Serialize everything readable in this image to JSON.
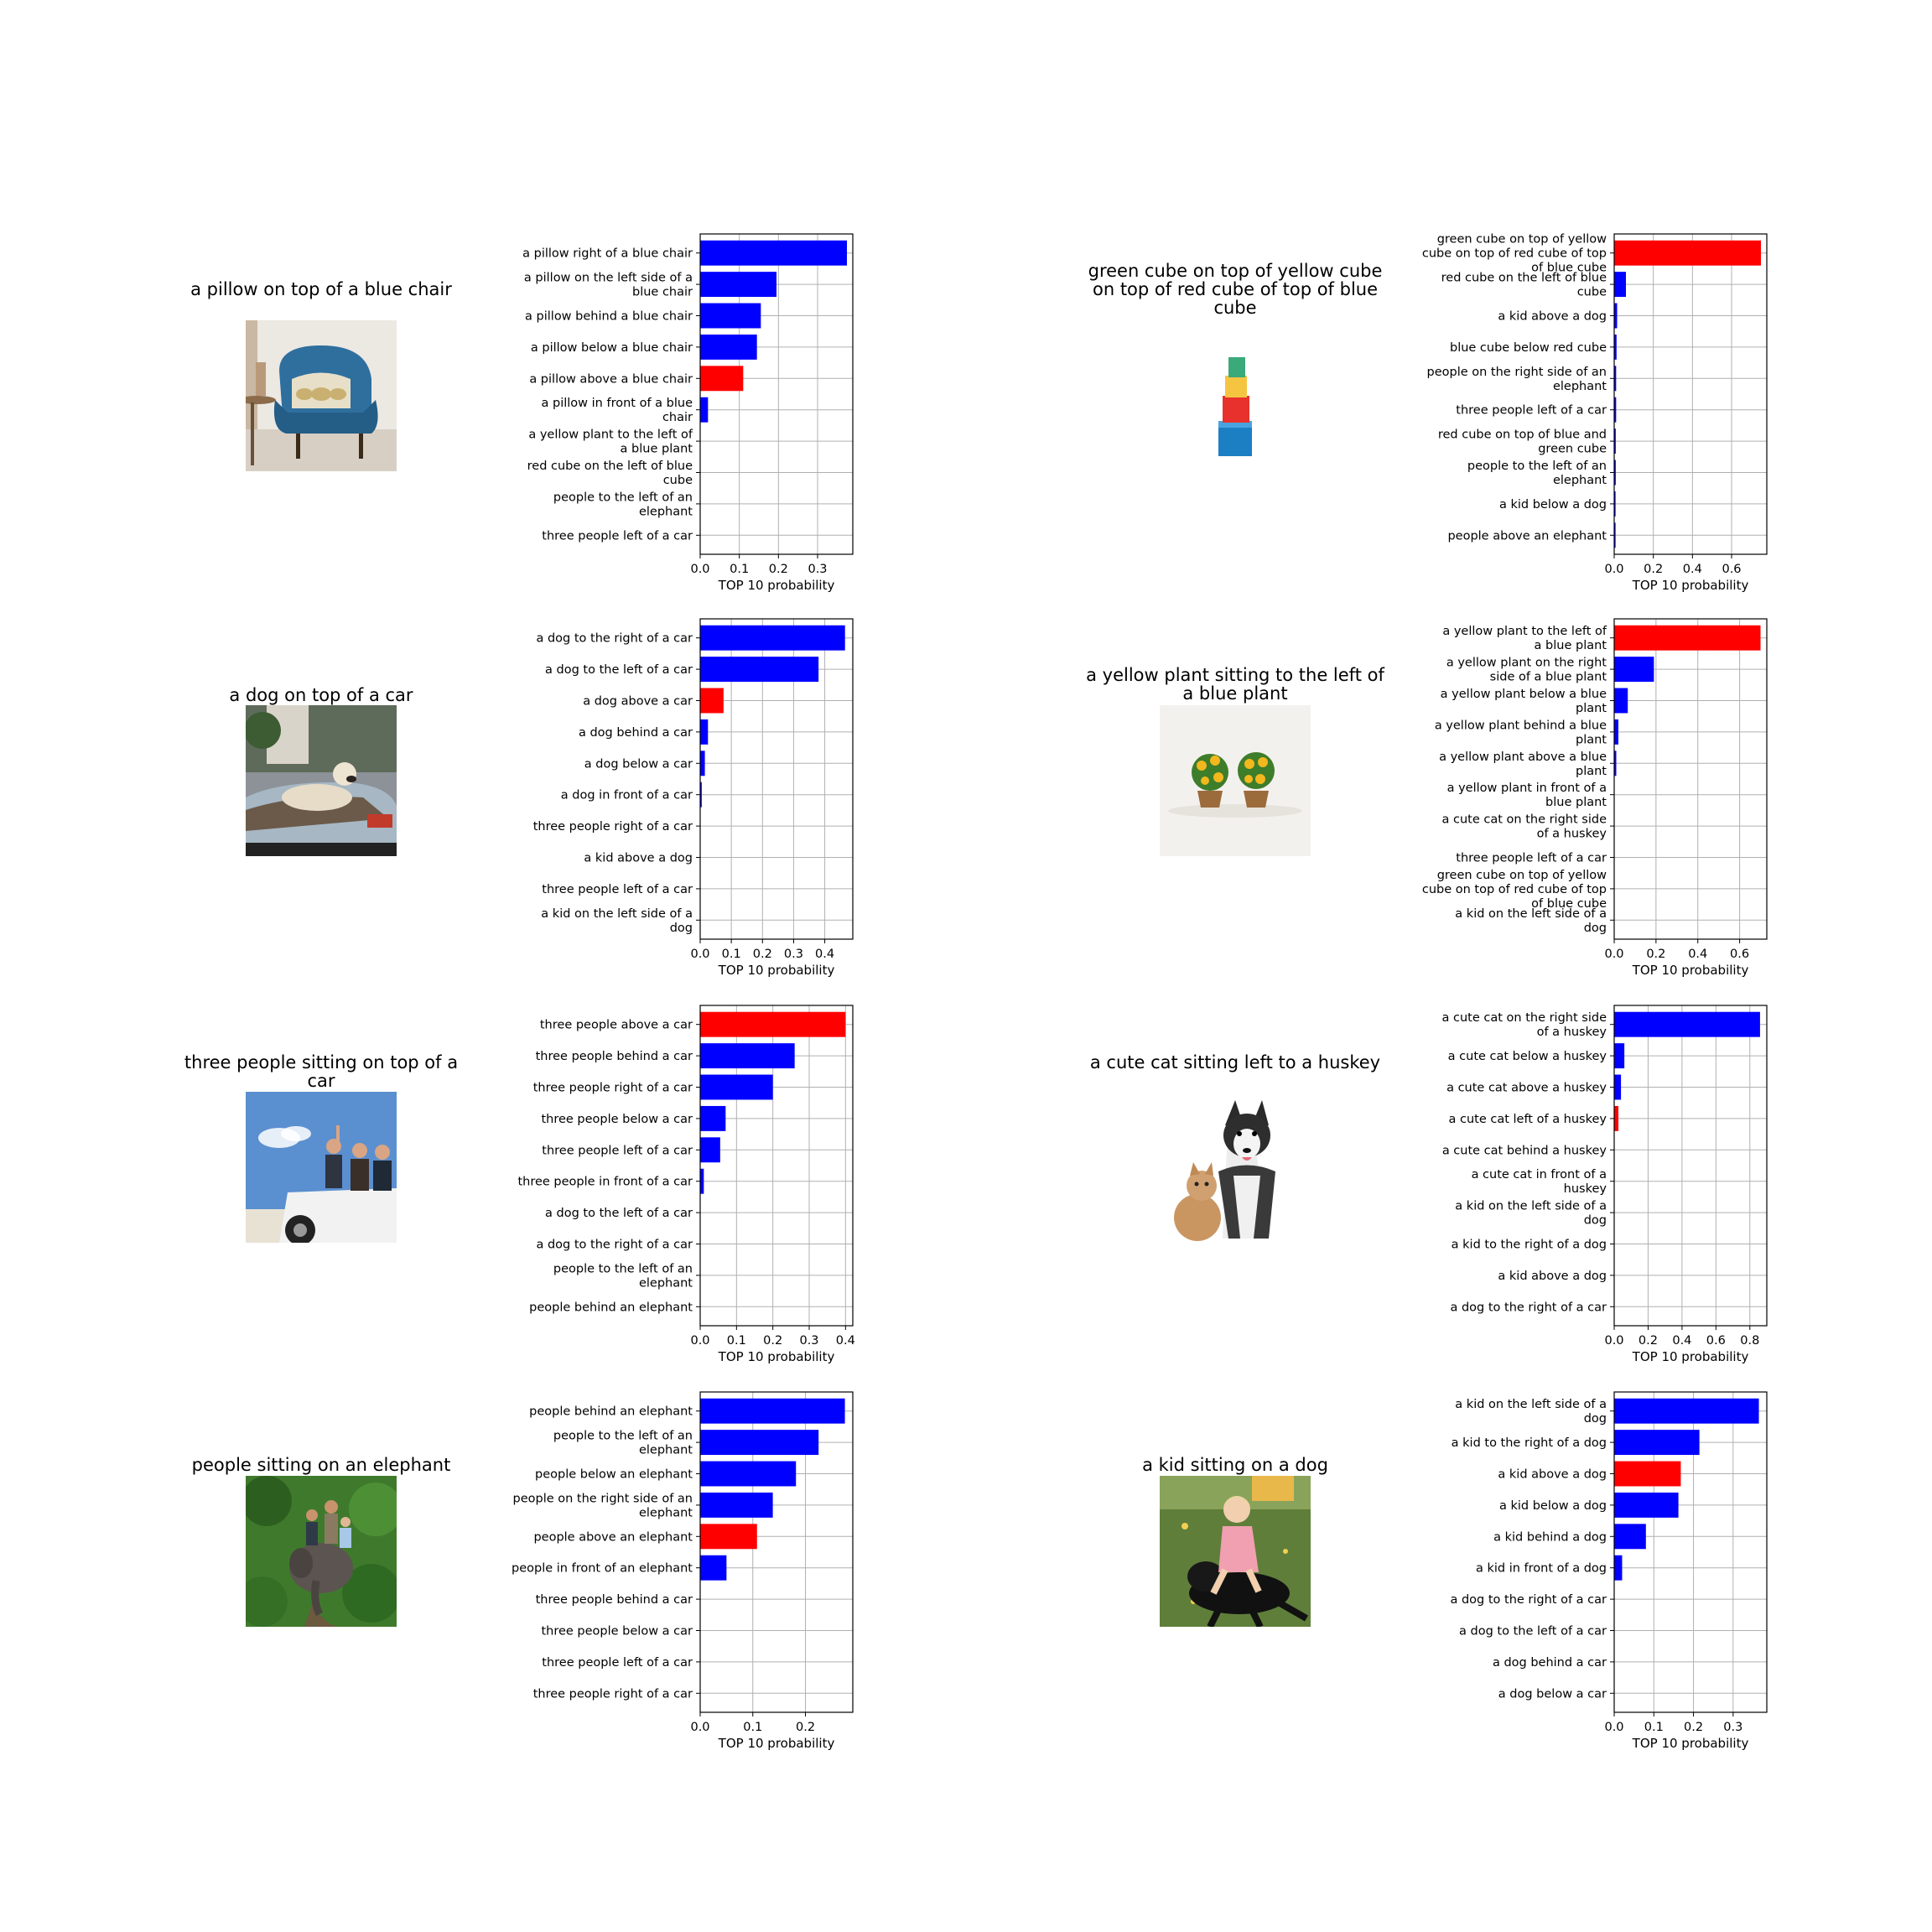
{
  "chart_data": [
    {
      "type": "bar",
      "orientation": "horizontal",
      "caption": "a pillow on top of a blue chair",
      "image": "armchair-photo",
      "xlabel": "TOP 10 probability",
      "xlim": [
        0,
        0.39
      ],
      "xticks": [
        0.0,
        0.1,
        0.2,
        0.3
      ],
      "grid": true,
      "categories": [
        "a pillow right of a blue chair",
        "a pillow on the left side of a blue chair",
        "a pillow behind a blue chair",
        "a pillow below a blue chair",
        "a pillow above a blue chair",
        "a pillow in front of a blue chair",
        "a yellow plant to the left of a blue plant",
        "red cube on the left of blue cube",
        "people to the left of an elephant",
        "three people left of a car"
      ],
      "values": [
        0.375,
        0.195,
        0.155,
        0.145,
        0.11,
        0.02,
        0.0,
        0.0,
        0.0,
        0.0
      ],
      "colors": [
        "#0000ff",
        "#0000ff",
        "#0000ff",
        "#0000ff",
        "#ff0000",
        "#0000ff",
        "#0000ff",
        "#0000ff",
        "#0000ff",
        "#0000ff"
      ]
    },
    {
      "type": "bar",
      "orientation": "horizontal",
      "caption": "green cube on top of yellow cube on top of red cube of top of blue cube",
      "image": "stacked-cubes-photo",
      "xlabel": "TOP 10 probability",
      "xlim": [
        0,
        0.78
      ],
      "xticks": [
        0.0,
        0.2,
        0.4,
        0.6
      ],
      "grid": true,
      "categories": [
        "green cube on top of yellow cube on top of red cube of top of blue cube",
        "red cube on the left of blue cube",
        "a kid above a dog",
        "blue cube below red cube",
        "people on the right side of an elephant",
        "three people left of a car",
        "red cube on top of blue and green cube",
        "people to the left of an elephant",
        "a kid below a dog",
        "people above an elephant"
      ],
      "values": [
        0.75,
        0.06,
        0.015,
        0.012,
        0.01,
        0.01,
        0.008,
        0.008,
        0.007,
        0.007
      ],
      "colors": [
        "#ff0000",
        "#0000ff",
        "#0000ff",
        "#0000ff",
        "#0000ff",
        "#0000ff",
        "#0000ff",
        "#0000ff",
        "#0000ff",
        "#0000ff"
      ]
    },
    {
      "type": "bar",
      "orientation": "horizontal",
      "caption": "a dog on top of a car",
      "image": "dog-on-car-photo",
      "xlabel": "TOP 10 probability",
      "xlim": [
        0,
        0.49
      ],
      "xticks": [
        0.0,
        0.1,
        0.2,
        0.3,
        0.4
      ],
      "grid": true,
      "categories": [
        "a dog to the right of a car",
        "a dog to the left of a car",
        "a dog above a car",
        "a dog behind a car",
        "a dog below a car",
        "a dog in front of a car",
        "three people right of a car",
        "a kid above a dog",
        "three people left of a car",
        "a kid on the left side of a dog"
      ],
      "values": [
        0.465,
        0.38,
        0.075,
        0.025,
        0.015,
        0.005,
        0.0,
        0.0,
        0.0,
        0.0
      ],
      "colors": [
        "#0000ff",
        "#0000ff",
        "#ff0000",
        "#0000ff",
        "#0000ff",
        "#0000ff",
        "#0000ff",
        "#0000ff",
        "#0000ff",
        "#0000ff"
      ]
    },
    {
      "type": "bar",
      "orientation": "horizontal",
      "caption": "a yellow plant sitting to the left of a blue plant",
      "image": "potted-plants-photo",
      "xlabel": "TOP 10 probability",
      "xlim": [
        0,
        0.73
      ],
      "xticks": [
        0.0,
        0.2,
        0.4,
        0.6
      ],
      "grid": true,
      "categories": [
        "a yellow plant to the left of a blue plant",
        "a yellow plant on the right side of a blue plant",
        "a yellow plant below a blue plant",
        "a yellow plant behind a blue plant",
        "a yellow plant above a blue plant",
        "a yellow plant in front of a blue plant",
        "a cute cat on the right side of a huskey",
        "three people left of a car",
        "green cube on top of yellow cube on top of red cube of top of blue cube",
        "a kid on the left side of a dog"
      ],
      "values": [
        0.7,
        0.19,
        0.065,
        0.02,
        0.01,
        0.0,
        0.0,
        0.0,
        0.0,
        0.0
      ],
      "colors": [
        "#ff0000",
        "#0000ff",
        "#0000ff",
        "#0000ff",
        "#0000ff",
        "#0000ff",
        "#0000ff",
        "#0000ff",
        "#0000ff",
        "#0000ff"
      ]
    },
    {
      "type": "bar",
      "orientation": "horizontal",
      "caption": "three people sitting on top of a car",
      "image": "people-on-car-photo",
      "xlabel": "TOP 10 probability",
      "xlim": [
        0,
        0.42
      ],
      "xticks": [
        0.0,
        0.1,
        0.2,
        0.3,
        0.4
      ],
      "grid": true,
      "categories": [
        "three people above a car",
        "three people behind a car",
        "three people right of a car",
        "three people below a car",
        "three people left of a car",
        "three people in front of a car",
        "a dog to the left of a car",
        "a dog to the right of a car",
        "people to the left of an elephant",
        "people behind an elephant"
      ],
      "values": [
        0.4,
        0.26,
        0.2,
        0.07,
        0.055,
        0.01,
        0.0,
        0.0,
        0.0,
        0.0
      ],
      "colors": [
        "#ff0000",
        "#0000ff",
        "#0000ff",
        "#0000ff",
        "#0000ff",
        "#0000ff",
        "#0000ff",
        "#0000ff",
        "#0000ff",
        "#0000ff"
      ]
    },
    {
      "type": "bar",
      "orientation": "horizontal",
      "caption": "a cute cat sitting left to a huskey",
      "image": "cat-and-husky-photo",
      "xlabel": "TOP 10 probability",
      "xlim": [
        0,
        0.9
      ],
      "xticks": [
        0.0,
        0.2,
        0.4,
        0.6,
        0.8
      ],
      "grid": true,
      "categories": [
        "a cute cat on the right side of a huskey",
        "a cute cat below a huskey",
        "a cute cat above a huskey",
        "a cute cat left of a huskey",
        "a cute cat behind a huskey",
        "a cute cat in front of a huskey",
        "a kid on the left side of a dog",
        "a kid to the right of a dog",
        "a kid above a dog",
        "a dog to the right of a car"
      ],
      "values": [
        0.86,
        0.06,
        0.04,
        0.025,
        0.0,
        0.0,
        0.0,
        0.0,
        0.0,
        0.0
      ],
      "colors": [
        "#0000ff",
        "#0000ff",
        "#0000ff",
        "#ff0000",
        "#0000ff",
        "#0000ff",
        "#0000ff",
        "#0000ff",
        "#0000ff",
        "#0000ff"
      ]
    },
    {
      "type": "bar",
      "orientation": "horizontal",
      "caption": "people sitting on an elephant",
      "image": "people-on-elephant-photo",
      "xlabel": "TOP 10 probability",
      "xlim": [
        0,
        0.29
      ],
      "xticks": [
        0.0,
        0.1,
        0.2
      ],
      "grid": true,
      "categories": [
        "people behind an elephant",
        "people to the left of an elephant",
        "people below an elephant",
        "people on the right side of an elephant",
        "people above an elephant",
        "people in front of an elephant",
        "three people behind a car",
        "three people below a car",
        "three people left of a car",
        "three people right of a car"
      ],
      "values": [
        0.275,
        0.225,
        0.182,
        0.138,
        0.108,
        0.05,
        0.0,
        0.0,
        0.0,
        0.0
      ],
      "colors": [
        "#0000ff",
        "#0000ff",
        "#0000ff",
        "#0000ff",
        "#ff0000",
        "#0000ff",
        "#0000ff",
        "#0000ff",
        "#0000ff",
        "#0000ff"
      ]
    },
    {
      "type": "bar",
      "orientation": "horizontal",
      "caption": "a kid sitting on a dog",
      "image": "kid-on-dog-photo",
      "xlabel": "TOP 10 probability",
      "xlim": [
        0,
        0.385
      ],
      "xticks": [
        0.0,
        0.1,
        0.2,
        0.3
      ],
      "grid": true,
      "categories": [
        "a kid on the left side of a dog",
        "a kid to the right of a dog",
        "a kid above a dog",
        "a kid below a dog",
        "a kid behind a dog",
        "a kid in front of a dog",
        "a dog to the right of a car",
        "a dog to the left of a car",
        "a dog behind a car",
        "a dog below a car"
      ],
      "values": [
        0.365,
        0.215,
        0.168,
        0.162,
        0.08,
        0.02,
        0.0,
        0.0,
        0.0,
        0.0
      ],
      "colors": [
        "#0000ff",
        "#0000ff",
        "#ff0000",
        "#0000ff",
        "#0000ff",
        "#0000ff",
        "#0000ff",
        "#0000ff",
        "#0000ff",
        "#0000ff"
      ]
    }
  ]
}
